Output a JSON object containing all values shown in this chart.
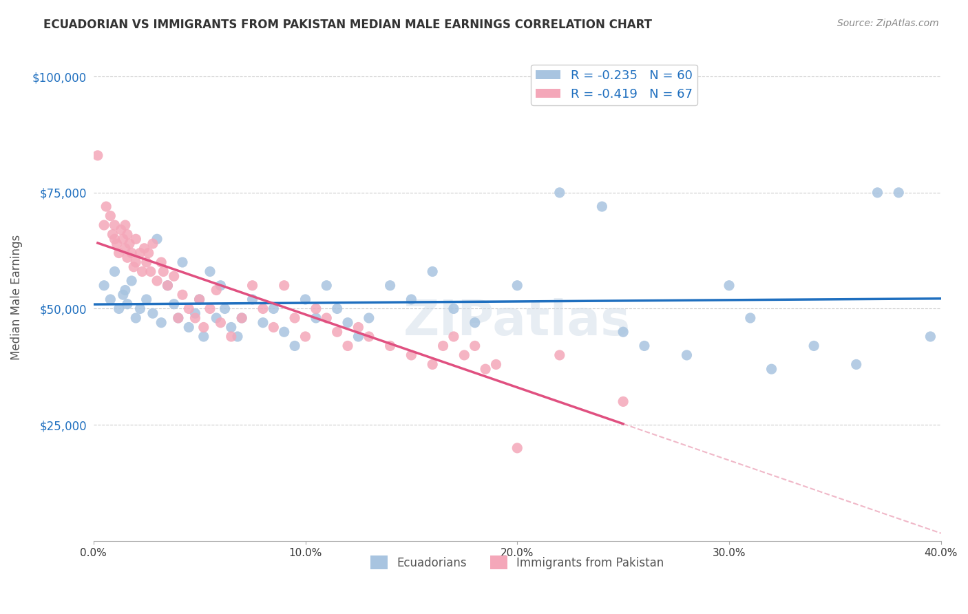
{
  "title": "ECUADORIAN VS IMMIGRANTS FROM PAKISTAN MEDIAN MALE EARNINGS CORRELATION CHART",
  "source": "Source: ZipAtlas.com",
  "ylabel": "Median Male Earnings",
  "yticks": [
    0,
    25000,
    50000,
    75000,
    100000
  ],
  "ytick_labels": [
    "",
    "$25,000",
    "$50,000",
    "$75,000",
    "$100,000"
  ],
  "xlim": [
    0.0,
    0.4
  ],
  "ylim": [
    0,
    105000
  ],
  "legend_labels": [
    "Ecuadorians",
    "Immigrants from Pakistan"
  ],
  "R_blue": -0.235,
  "N_blue": 60,
  "R_pink": -0.419,
  "N_pink": 67,
  "color_blue": "#a8c4e0",
  "color_pink": "#f4a7b9",
  "line_color_blue": "#1f6fbf",
  "line_color_pink": "#e05080",
  "line_color_pink_dashed": "#f0b8c8",
  "watermark": "ZIPatlas",
  "blue_x": [
    0.005,
    0.008,
    0.01,
    0.012,
    0.014,
    0.015,
    0.016,
    0.018,
    0.02,
    0.022,
    0.025,
    0.028,
    0.03,
    0.032,
    0.035,
    0.038,
    0.04,
    0.042,
    0.045,
    0.048,
    0.05,
    0.052,
    0.055,
    0.058,
    0.06,
    0.062,
    0.065,
    0.068,
    0.07,
    0.075,
    0.08,
    0.085,
    0.09,
    0.095,
    0.1,
    0.105,
    0.11,
    0.115,
    0.12,
    0.125,
    0.13,
    0.14,
    0.15,
    0.16,
    0.17,
    0.18,
    0.2,
    0.22,
    0.24,
    0.25,
    0.26,
    0.28,
    0.3,
    0.31,
    0.32,
    0.34,
    0.36,
    0.37,
    0.38,
    0.395
  ],
  "blue_y": [
    55000,
    52000,
    58000,
    50000,
    53000,
    54000,
    51000,
    56000,
    48000,
    50000,
    52000,
    49000,
    65000,
    47000,
    55000,
    51000,
    48000,
    60000,
    46000,
    49000,
    52000,
    44000,
    58000,
    48000,
    55000,
    50000,
    46000,
    44000,
    48000,
    52000,
    47000,
    50000,
    45000,
    42000,
    52000,
    48000,
    55000,
    50000,
    47000,
    44000,
    48000,
    55000,
    52000,
    58000,
    50000,
    47000,
    55000,
    75000,
    72000,
    45000,
    42000,
    40000,
    55000,
    48000,
    37000,
    42000,
    38000,
    75000,
    75000,
    44000
  ],
  "pink_x": [
    0.002,
    0.005,
    0.006,
    0.008,
    0.009,
    0.01,
    0.01,
    0.011,
    0.012,
    0.013,
    0.014,
    0.015,
    0.015,
    0.016,
    0.016,
    0.017,
    0.018,
    0.019,
    0.02,
    0.02,
    0.022,
    0.023,
    0.024,
    0.025,
    0.026,
    0.027,
    0.028,
    0.03,
    0.032,
    0.033,
    0.035,
    0.038,
    0.04,
    0.042,
    0.045,
    0.048,
    0.05,
    0.052,
    0.055,
    0.058,
    0.06,
    0.065,
    0.07,
    0.075,
    0.08,
    0.085,
    0.09,
    0.095,
    0.1,
    0.105,
    0.11,
    0.115,
    0.12,
    0.125,
    0.13,
    0.14,
    0.15,
    0.16,
    0.165,
    0.17,
    0.175,
    0.18,
    0.185,
    0.19,
    0.2,
    0.22,
    0.25
  ],
  "pink_y": [
    83000,
    68000,
    72000,
    70000,
    66000,
    68000,
    65000,
    64000,
    62000,
    67000,
    65000,
    63000,
    68000,
    61000,
    66000,
    64000,
    62000,
    59000,
    65000,
    60000,
    62000,
    58000,
    63000,
    60000,
    62000,
    58000,
    64000,
    56000,
    60000,
    58000,
    55000,
    57000,
    48000,
    53000,
    50000,
    48000,
    52000,
    46000,
    50000,
    54000,
    47000,
    44000,
    48000,
    55000,
    50000,
    46000,
    55000,
    48000,
    44000,
    50000,
    48000,
    45000,
    42000,
    46000,
    44000,
    42000,
    40000,
    38000,
    42000,
    44000,
    40000,
    42000,
    37000,
    38000,
    20000,
    40000,
    30000
  ]
}
